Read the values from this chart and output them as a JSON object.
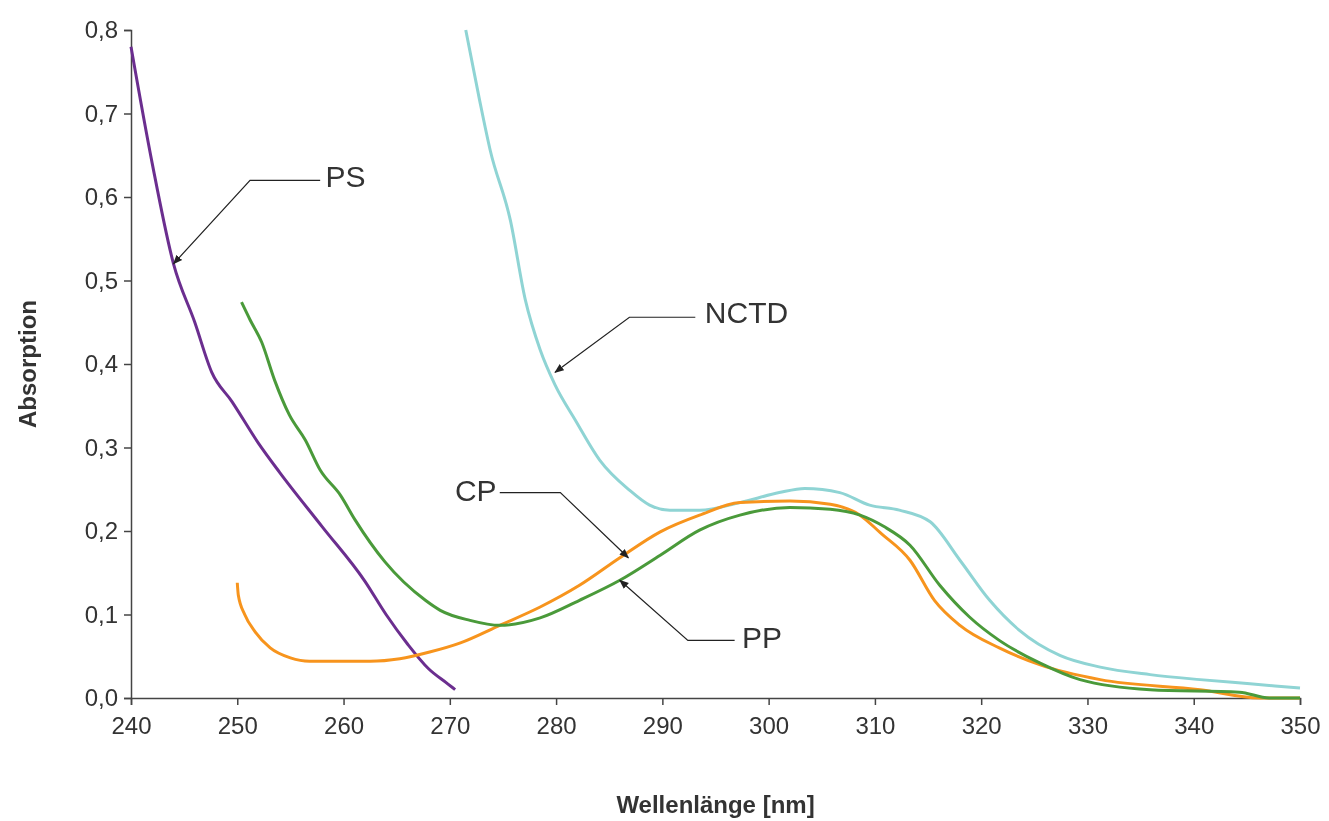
{
  "chart_data": {
    "type": "line",
    "xlabel": "Wellenlänge [nm]",
    "ylabel": "Absorption",
    "xlim": [
      240,
      350
    ],
    "ylim": [
      0,
      0.8
    ],
    "xticks": [
      240,
      250,
      260,
      270,
      280,
      290,
      300,
      310,
      320,
      330,
      340,
      350
    ],
    "yticks": [
      {
        "value": 0,
        "label": "0,0"
      },
      {
        "value": 0.1,
        "label": "0,1"
      },
      {
        "value": 0.2,
        "label": "0,2"
      },
      {
        "value": 0.3,
        "label": "0,3"
      },
      {
        "value": 0.4,
        "label": "0,4"
      },
      {
        "value": 0.5,
        "label": "0,5"
      },
      {
        "value": 0.6,
        "label": "0,6"
      },
      {
        "value": 0.7,
        "label": "0,7"
      },
      {
        "value": 0.8,
        "label": "0,8"
      }
    ],
    "annotations": [
      {
        "text": "PS",
        "x": 244,
        "y": 0.52
      },
      {
        "text": "NCTD",
        "x": 279.9,
        "y": 0.39
      },
      {
        "text": "CP",
        "x": 286.8,
        "y": 0.168
      },
      {
        "text": "PP",
        "x": 286,
        "y": 0.141
      }
    ],
    "grid": false,
    "marker": "none",
    "line_style": "solid",
    "series": [
      {
        "color": "#6b2e8f",
        "x": [
          240,
          242,
          244,
          246,
          247.6,
          249.5,
          252,
          254,
          258,
          262,
          264,
          266,
          268,
          269.8,
          270.5
        ],
        "values": [
          0.78,
          0.64,
          0.52,
          0.45,
          0.39,
          0.355,
          0.305,
          0.27,
          0.205,
          0.14,
          0.1,
          0.065,
          0.035,
          0.017,
          0.01
        ]
      },
      {
        "color": "#8fd4d4",
        "x": [
          271.5,
          272.8,
          273.8,
          275.7,
          277.1,
          278.5,
          279.9,
          281.8,
          284.1,
          286.9,
          288.8,
          290.7,
          293.5,
          297.3,
          301,
          303.4,
          306.7,
          309.5,
          312.3,
          315.2,
          318,
          320.8,
          323.6,
          327.4,
          331.2,
          335.9,
          340.6,
          345.3,
          350
        ],
        "values": [
          0.8,
          0.716,
          0.656,
          0.572,
          0.477,
          0.417,
          0.375,
          0.333,
          0.285,
          0.249,
          0.231,
          0.225,
          0.225,
          0.234,
          0.246,
          0.251,
          0.246,
          0.231,
          0.225,
          0.211,
          0.165,
          0.117,
          0.081,
          0.051,
          0.037,
          0.028,
          0.022,
          0.017,
          0.012
        ]
      },
      {
        "color": "#f7941d",
        "x": [
          250,
          250.1,
          250.7,
          251.7,
          253.1,
          255,
          256.8,
          262.5,
          265.3,
          268.1,
          271,
          274.7,
          278.5,
          282.2,
          286,
          289.8,
          293.5,
          297.3,
          302,
          305.8,
          308.6,
          310.5,
          313.3,
          315.6,
          318,
          321.7,
          325.5,
          331.2,
          340.6,
          346.2,
          350
        ],
        "values": [
          0.138,
          0.123,
          0.1,
          0.079,
          0.06,
          0.048,
          0.044,
          0.044,
          0.047,
          0.055,
          0.066,
          0.087,
          0.109,
          0.135,
          0.168,
          0.199,
          0.219,
          0.234,
          0.236,
          0.232,
          0.219,
          0.198,
          0.165,
          0.117,
          0.087,
          0.06,
          0.04,
          0.022,
          0.01,
          0,
          0
        ]
      },
      {
        "color": "#4a9a3a",
        "x": [
          250.4,
          251.2,
          252.3,
          253.5,
          254.9,
          256.4,
          257.8,
          259.7,
          261.1,
          263.9,
          267.7,
          269.1,
          271.9,
          274.7,
          278.5,
          282.2,
          286,
          289.8,
          293.5,
          297.3,
          302,
          305.8,
          308.6,
          310.9,
          313.3,
          316.1,
          318.9,
          321.7,
          325.5,
          329.3,
          335.9,
          344.3,
          347.1,
          350
        ],
        "values": [
          0.474,
          0.453,
          0.426,
          0.381,
          0.339,
          0.309,
          0.273,
          0.243,
          0.213,
          0.163,
          0.117,
          0.105,
          0.093,
          0.087,
          0.096,
          0.117,
          0.141,
          0.171,
          0.201,
          0.219,
          0.228,
          0.226,
          0.219,
          0.205,
          0.183,
          0.135,
          0.097,
          0.069,
          0.042,
          0.022,
          0.01,
          0.007,
          0,
          0
        ]
      }
    ]
  }
}
